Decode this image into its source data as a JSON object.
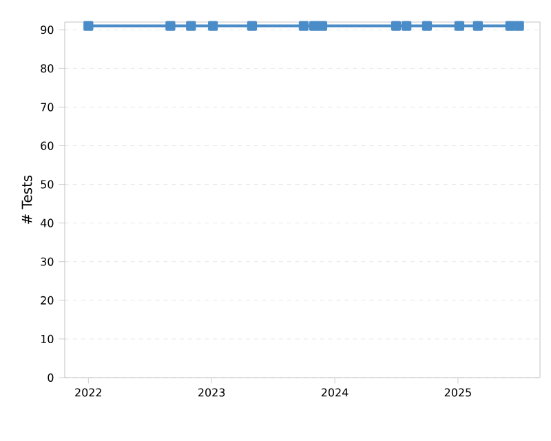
{
  "chart_data": {
    "type": "line",
    "ylabel": "# Tests",
    "x": [
      "2022-01-01",
      "2022-09-01",
      "2022-11-01",
      "2023-01-05",
      "2023-05-01",
      "2023-10-01",
      "2023-11-01",
      "2023-11-25",
      "2024-07-01",
      "2024-08-01",
      "2024-10-01",
      "2025-01-05",
      "2025-03-01",
      "2025-06-05",
      "2025-07-01"
    ],
    "series": [
      {
        "color": "#4a8cc8",
        "values": [
          91,
          91,
          91,
          91,
          91,
          91,
          91,
          91,
          91,
          91,
          91,
          91,
          91,
          91,
          91
        ]
      }
    ],
    "xlim": [
      "2021-10-23",
      "2025-09-01"
    ],
    "xticks": [
      "2022",
      "2023",
      "2024",
      "2025"
    ],
    "ylim": [
      0,
      92
    ],
    "yticks": [
      0,
      10,
      20,
      30,
      40,
      50,
      60,
      70,
      80,
      90
    ],
    "grid": "y",
    "marker": "square",
    "line_style": "solid"
  }
}
